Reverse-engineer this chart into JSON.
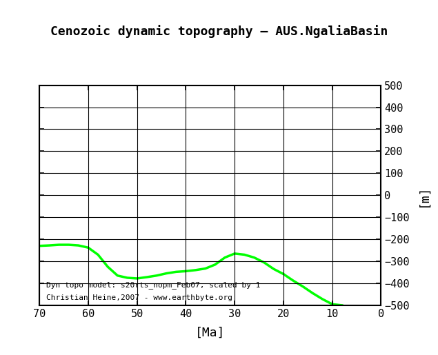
{
  "title": "Cenozoic dynamic topography – AUS.NgaliaBasin",
  "xlabel": "[Ma]",
  "ylabel": "[m]",
  "xlim": [
    70,
    0
  ],
  "ylim": [
    -500,
    500
  ],
  "yticks": [
    -500,
    -400,
    -300,
    -200,
    -100,
    0,
    100,
    200,
    300,
    400,
    500
  ],
  "xticks": [
    70,
    60,
    50,
    40,
    30,
    20,
    10,
    0
  ],
  "line_color": "#00ff00",
  "line_width": 2.5,
  "background_color": "#ffffff",
  "grid_color": "#000000",
  "annotation_line1": "Dyn topo model: s20rts_nopm_Feb07, scaled by 1",
  "annotation_line2": "Christian Heine,2007 - www.earthbyte.org",
  "curve_x": [
    70,
    68,
    66,
    64,
    62,
    60,
    58,
    56,
    54,
    52,
    50,
    48,
    46,
    44,
    42,
    40,
    38,
    36,
    34,
    32,
    30,
    28,
    26,
    24,
    22,
    20,
    18,
    16,
    14,
    12,
    10,
    8
  ],
  "curve_y": [
    -230,
    -228,
    -225,
    -225,
    -228,
    -238,
    -270,
    -325,
    -365,
    -375,
    -378,
    -372,
    -365,
    -355,
    -348,
    -345,
    -340,
    -333,
    -315,
    -283,
    -265,
    -270,
    -283,
    -305,
    -335,
    -358,
    -388,
    -415,
    -445,
    -472,
    -495,
    -500
  ]
}
